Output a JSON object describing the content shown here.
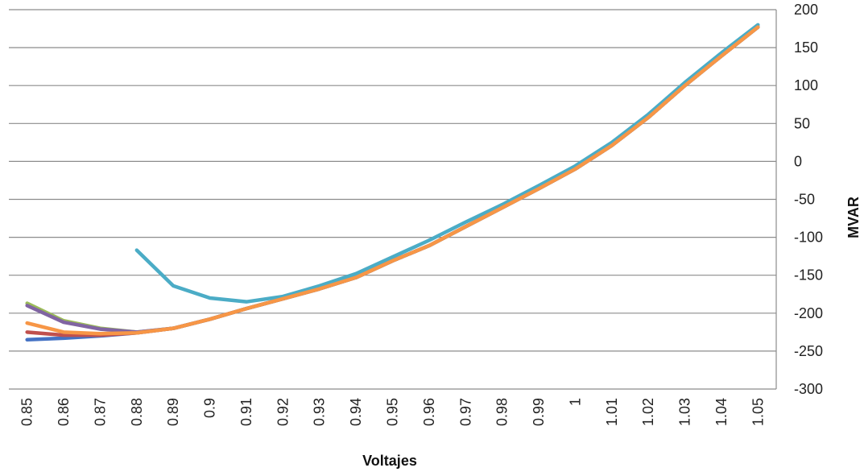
{
  "chart_data": {
    "type": "line",
    "title": "",
    "xlabel": "Voltajes",
    "ylabel": "MVAR",
    "y_axis_side": "right",
    "ylim": [
      -300,
      200
    ],
    "yticks": [
      -300,
      -250,
      -200,
      -150,
      -100,
      -50,
      0,
      50,
      100,
      150,
      200
    ],
    "grid": true,
    "legend": "none",
    "categories": [
      "0.85",
      "0.86",
      "0.87",
      "0.88",
      "0.89",
      "0.9",
      "0.91",
      "0.92",
      "0.93",
      "0.94",
      "0.95",
      "0.96",
      "0.97",
      "0.98",
      "0.99",
      "1",
      "1.01",
      "1.02",
      "1.03",
      "1.04",
      "1.05"
    ],
    "series": [
      {
        "color": "#4472c4",
        "values": [
          -235,
          -233,
          -230,
          -226,
          -220,
          -208,
          -194,
          -181,
          -168,
          -153,
          -131,
          -111,
          -86,
          -61,
          -36,
          -10,
          21,
          58,
          100,
          139,
          177
        ]
      },
      {
        "color": "#c0504d",
        "values": [
          -225,
          -229,
          -229,
          -226,
          -220,
          -208,
          -194,
          -181,
          -168,
          -153,
          -131,
          -111,
          -86,
          -61,
          -36,
          -10,
          21,
          58,
          100,
          139,
          177
        ]
      },
      {
        "color": "#9bbb59",
        "values": [
          -187,
          -210,
          -220,
          -225,
          -220,
          -208,
          -194,
          -181,
          -168,
          -153,
          -131,
          -111,
          -86,
          -61,
          -36,
          -10,
          21,
          58,
          100,
          139,
          177
        ]
      },
      {
        "color": "#8064a2",
        "values": [
          -190,
          -212,
          -221,
          -225,
          -220,
          -208,
          -194,
          -181,
          -168,
          -153,
          -131,
          -111,
          -86,
          -61,
          -36,
          -10,
          21,
          58,
          100,
          139,
          177
        ]
      },
      {
        "color": "#4bacc6",
        "values": [
          null,
          null,
          null,
          -117,
          -164,
          -180,
          -185,
          -178,
          -164,
          -148,
          -126,
          -104,
          -80,
          -57,
          -32,
          -6,
          25,
          62,
          104,
          143,
          180
        ]
      },
      {
        "color": "#f79646",
        "values": [
          -213,
          -225,
          -227,
          -226,
          -220,
          -208,
          -194,
          -181,
          -168,
          -153,
          -131,
          -111,
          -86,
          -61,
          -36,
          -10,
          21,
          58,
          100,
          139,
          177
        ]
      }
    ]
  }
}
